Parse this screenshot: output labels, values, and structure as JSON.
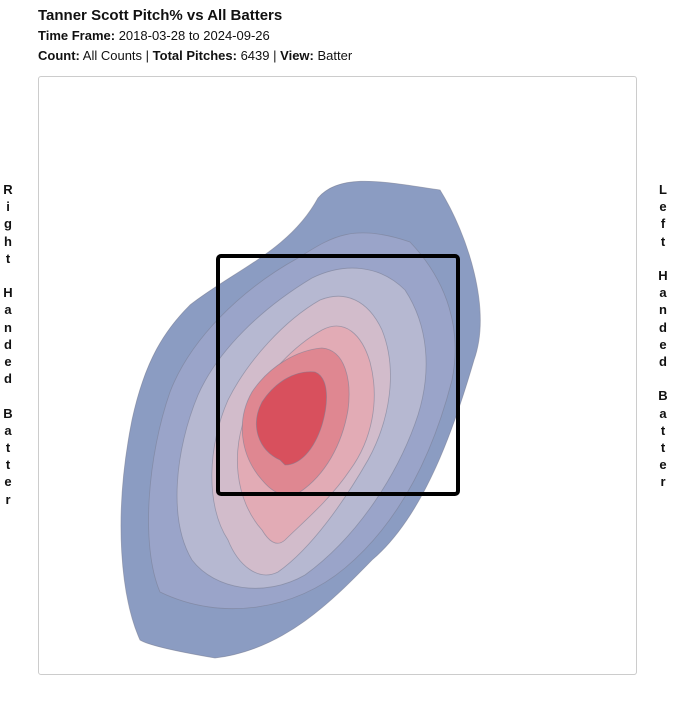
{
  "header": {
    "title": "Tanner Scott Pitch% vs All Batters",
    "time_frame_label": "Time Frame:",
    "time_frame": "2018-03-28 to 2024-09-26",
    "count_label": "Count:",
    "count": "All Counts",
    "total_label": "Total Pitches:",
    "total": "6439",
    "view_label": "View:",
    "view": "Batter",
    "sep": "|"
  },
  "side_labels": {
    "left": "Right Handed Batter",
    "right": "Left Handed Batter"
  },
  "chart_data": {
    "type": "heatmap",
    "subtype": "density-contour",
    "title": "Tanner Scott Pitch% vs All Batters",
    "levels": 7,
    "level_colors": [
      "#8b9cc2",
      "#9aa4c9",
      "#b6b8d1",
      "#d2bccb",
      "#e2abb5",
      "#df8791",
      "#d8505d"
    ],
    "strike_zone": true,
    "total_pitches": 6439
  }
}
